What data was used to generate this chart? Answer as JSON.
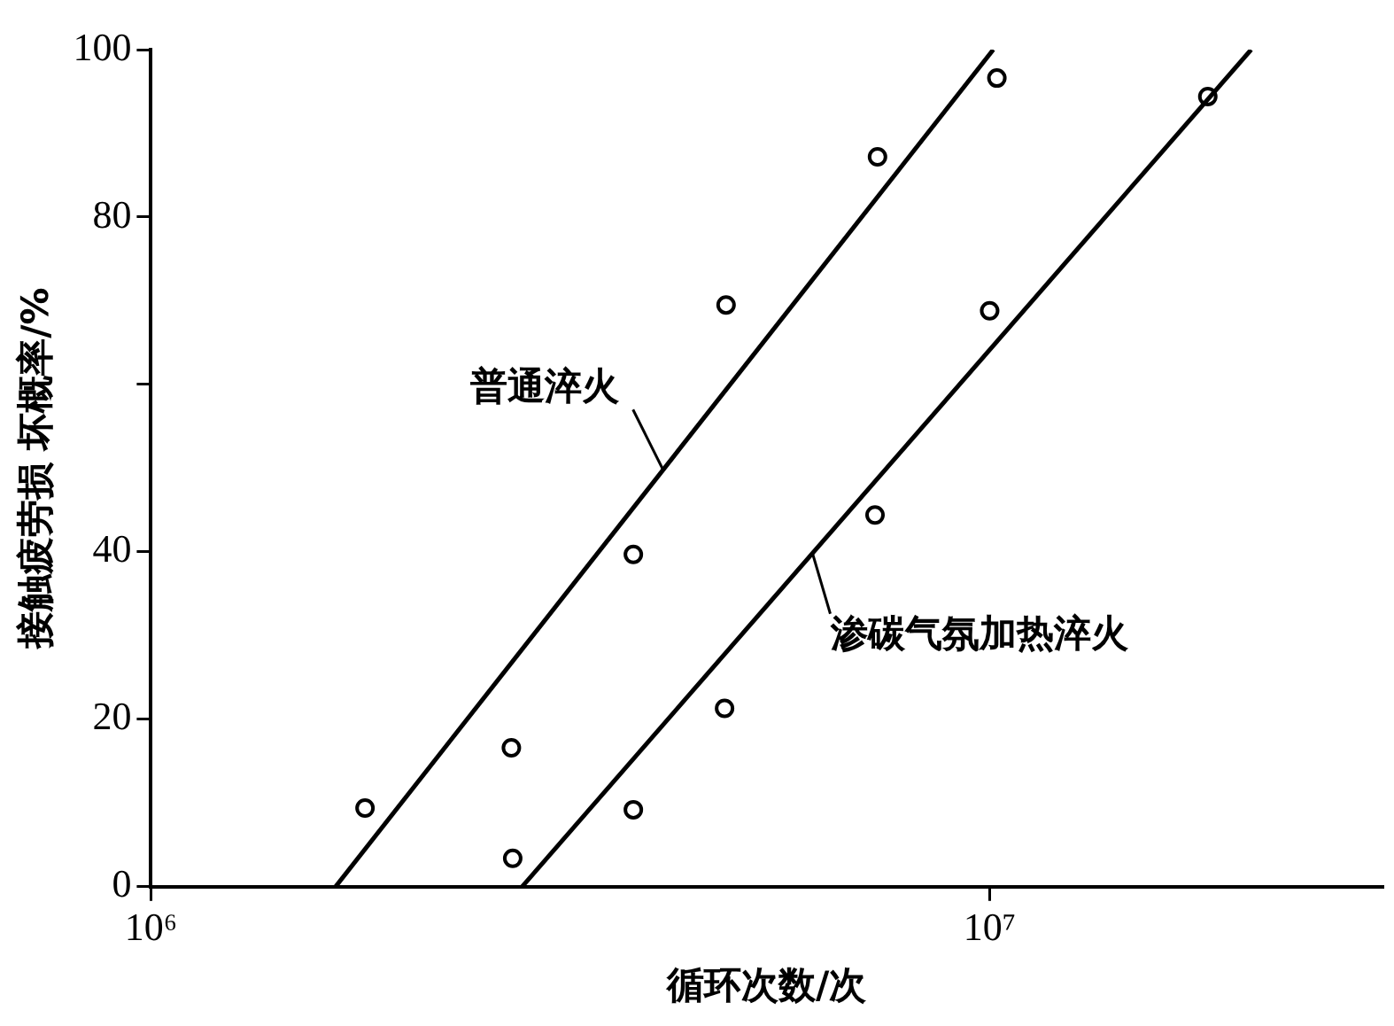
{
  "chart_data": {
    "type": "scatter",
    "xlabel": "循环次数/次",
    "ylabel": "接触疲劳损 坏概率/%",
    "log": "x",
    "xlim": [
      1000000,
      29400000
    ],
    "xticks": [
      {
        "value": 1000000,
        "label": "10⁶"
      },
      {
        "value": 10000000,
        "label": "10⁷"
      }
    ],
    "ylim": [
      0,
      100
    ],
    "yticks": [
      0,
      20,
      40,
      {
        "value": 60,
        "label": null
      },
      80,
      100
    ],
    "grid": false,
    "legend": false,
    "series": [
      {
        "marker": "circle",
        "color": "#000000",
        "x": [
          1800000,
          2690000,
          3760000,
          4850000,
          7350000,
          10200000
        ],
        "values": [
          9.4,
          16.6,
          39.7,
          69.5,
          87.2,
          96.6
        ]
      },
      {
        "marker": "circle",
        "color": "#000000",
        "x": [
          2700000,
          3760000,
          4830000,
          7300000,
          10000000,
          18200000
        ],
        "values": [
          3.4,
          9.2,
          21.3,
          44.4,
          68.8,
          94.4
        ]
      },
      {
        "type": "line",
        "marker": "none",
        "color": "#000000",
        "x": [
          1660000,
          10100000
        ],
        "values": [
          0,
          100
        ]
      },
      {
        "type": "line",
        "marker": "none",
        "color": "#000000",
        "x": [
          2770000,
          20500000
        ],
        "values": [
          0,
          100
        ]
      }
    ],
    "annotations": [
      {
        "text": "普通淬火",
        "x": 4080000,
        "y": 49.8
      },
      {
        "text": "渗碳气氛加热淬火",
        "x": 6150000,
        "y": 39.8
      }
    ]
  }
}
